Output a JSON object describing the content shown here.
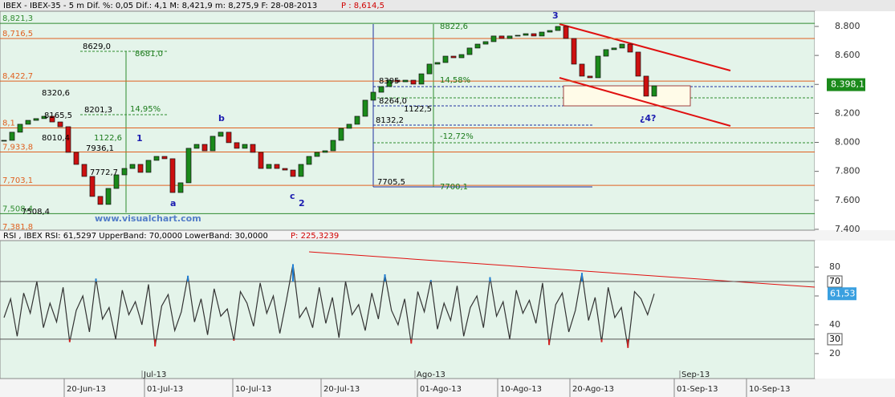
{
  "header": "IBEX - IBEX-35 - 5 m Dif. %: 0,05 Dif.: 4,1 M: 8,421,9 m: 8,275,9 F: 28-08-2013",
  "header_p": "P : 8,614,5",
  "chart_data": [
    {
      "type": "candlestick",
      "values": [
        8014,
        8070,
        8125,
        8152,
        8164,
        8180,
        8141,
        8108,
        7931,
        7848,
        7765,
        7627,
        7572,
        7682,
        7776,
        7820,
        7848,
        7793,
        7876,
        7903,
        7887,
        7654,
        7721,
        7959,
        7986,
        7942,
        8042,
        8070,
        7998,
        7959,
        7986,
        7931,
        7820,
        7848,
        7820,
        7809,
        7765,
        7848,
        7903,
        7931,
        7942,
        8014,
        8097,
        8125,
        8180,
        8291,
        8346,
        8385,
        8429,
        8418,
        8429,
        8402,
        8473,
        8540,
        8551,
        8595,
        8584,
        8606,
        8651,
        8678,
        8695,
        8734,
        8717,
        8734,
        8739,
        8750,
        8734,
        8761,
        8772,
        8800,
        8717,
        8540,
        8457,
        8446,
        8595,
        8640,
        8651,
        8678,
        8623,
        8457,
        8319,
        8390
      ],
      "up_color": "#1a8a1a",
      "down_color": "#cc1010",
      "xlim": [
        0,
        101
      ],
      "ylim": [
        7394,
        8905
      ],
      "yticks": [
        {
          "value": 8800,
          "label": "8.800"
        },
        {
          "value": 8600,
          "label": "8.600"
        },
        {
          "value": 8400,
          "label": "8.400"
        },
        {
          "value": 8200,
          "label": "8.200"
        },
        {
          "value": 8000,
          "label": "8.000"
        },
        {
          "value": 7800,
          "label": "7.800"
        },
        {
          "value": 7600,
          "label": "7.600"
        },
        {
          "value": 7400,
          "label": "7.400"
        }
      ],
      "xticks": [
        {
          "value": 10,
          "label": "20-Jun-13"
        },
        {
          "value": 20,
          "label": "01-Jul-13"
        },
        {
          "value": 31,
          "label": "10-Jul-13"
        },
        {
          "value": 42,
          "label": "20-Jul-13"
        },
        {
          "value": 54,
          "label": "01-Ago-13"
        },
        {
          "value": 64,
          "label": "10-Ago-13"
        },
        {
          "value": 73,
          "label": "20-Ago-13"
        },
        {
          "value": 86,
          "label": "01-Sep-13"
        },
        {
          "value": 95,
          "label": "10-Sep-13"
        }
      ],
      "month_ticks": [
        {
          "value": 19,
          "label": "Jul-13"
        },
        {
          "value": 53,
          "label": "Ago-13"
        },
        {
          "value": 86,
          "label": "Sep-13"
        }
      ],
      "levels": [
        {
          "value": 8821.3,
          "label": "8,821,3",
          "color": "#2e8b2e"
        },
        {
          "value": 8716.5,
          "label": "8,716,5",
          "color": "#e06020"
        },
        {
          "value": 8422.7,
          "label": "8,422,7",
          "color": "#e06020"
        },
        {
          "value": 8100,
          "label": "8,1",
          "color": "#e06020"
        },
        {
          "value": 7933.8,
          "label": "7,933,8",
          "color": "#e06020"
        },
        {
          "value": 7703.1,
          "label": "7,703,1",
          "color": "#e06020"
        },
        {
          "value": 7508.4,
          "label": "7,508,4",
          "color": "#2e8b2e"
        },
        {
          "value": 7381.8,
          "label": "7,381,8",
          "color": "#e06020"
        }
      ],
      "last_value": {
        "value": 8398.1,
        "label": "8.398,1"
      },
      "annotations": [
        "8629,0",
        "8681,0",
        "8320,6",
        "8201,3",
        "14,95%",
        "8165,5",
        "8010,4",
        "1122,6",
        "7936,1",
        "7772,7",
        "7508,4",
        "8395",
        "14,58%",
        "8264,0",
        "1122,5",
        "8132,2",
        "-12,72%",
        "7705,5",
        "7700,1",
        "8822,6"
      ],
      "waves": [
        "1",
        "2",
        "3",
        "a",
        "b",
        "c",
        "¿4?"
      ],
      "watermark": "www.visualchart.com"
    },
    {
      "type": "line",
      "title": "RSI , IBEX RSI: 61,5297 UpperBand: 70,0000 LowerBand: 30,0000",
      "title_p": "P: 225,3239",
      "values": [
        45,
        58,
        32,
        62,
        48,
        70,
        38,
        55,
        42,
        66,
        28,
        50,
        60,
        35,
        72,
        44,
        52,
        30,
        64,
        47,
        56,
        40,
        68,
        25,
        53,
        61,
        36,
        49,
        74,
        42,
        58,
        33,
        65,
        46,
        51,
        29,
        63,
        55,
        39,
        69,
        48,
        60,
        34,
        57,
        82,
        45,
        52,
        38,
        66,
        41,
        59,
        31,
        70,
        47,
        54,
        36,
        62,
        44,
        75,
        50,
        40,
        58,
        27,
        63,
        49,
        71,
        37,
        55,
        43,
        67,
        32,
        52,
        60,
        38,
        73,
        46,
        56,
        30,
        64,
        48,
        57,
        41,
        69,
        26,
        54,
        62,
        35,
        50,
        76,
        43,
        59,
        28,
        66,
        45,
        52,
        24,
        63,
        58,
        47,
        61.53
      ],
      "color": "#333333",
      "upper_color": "#1f7fd6",
      "lower_color": "#d62020",
      "ylim": [
        2.7,
        98.4
      ],
      "yticks": [
        20,
        40,
        60,
        80
      ],
      "upper_band": 70,
      "lower_band": 30,
      "last_value": {
        "value": 61.53,
        "label": "61,53"
      }
    }
  ]
}
